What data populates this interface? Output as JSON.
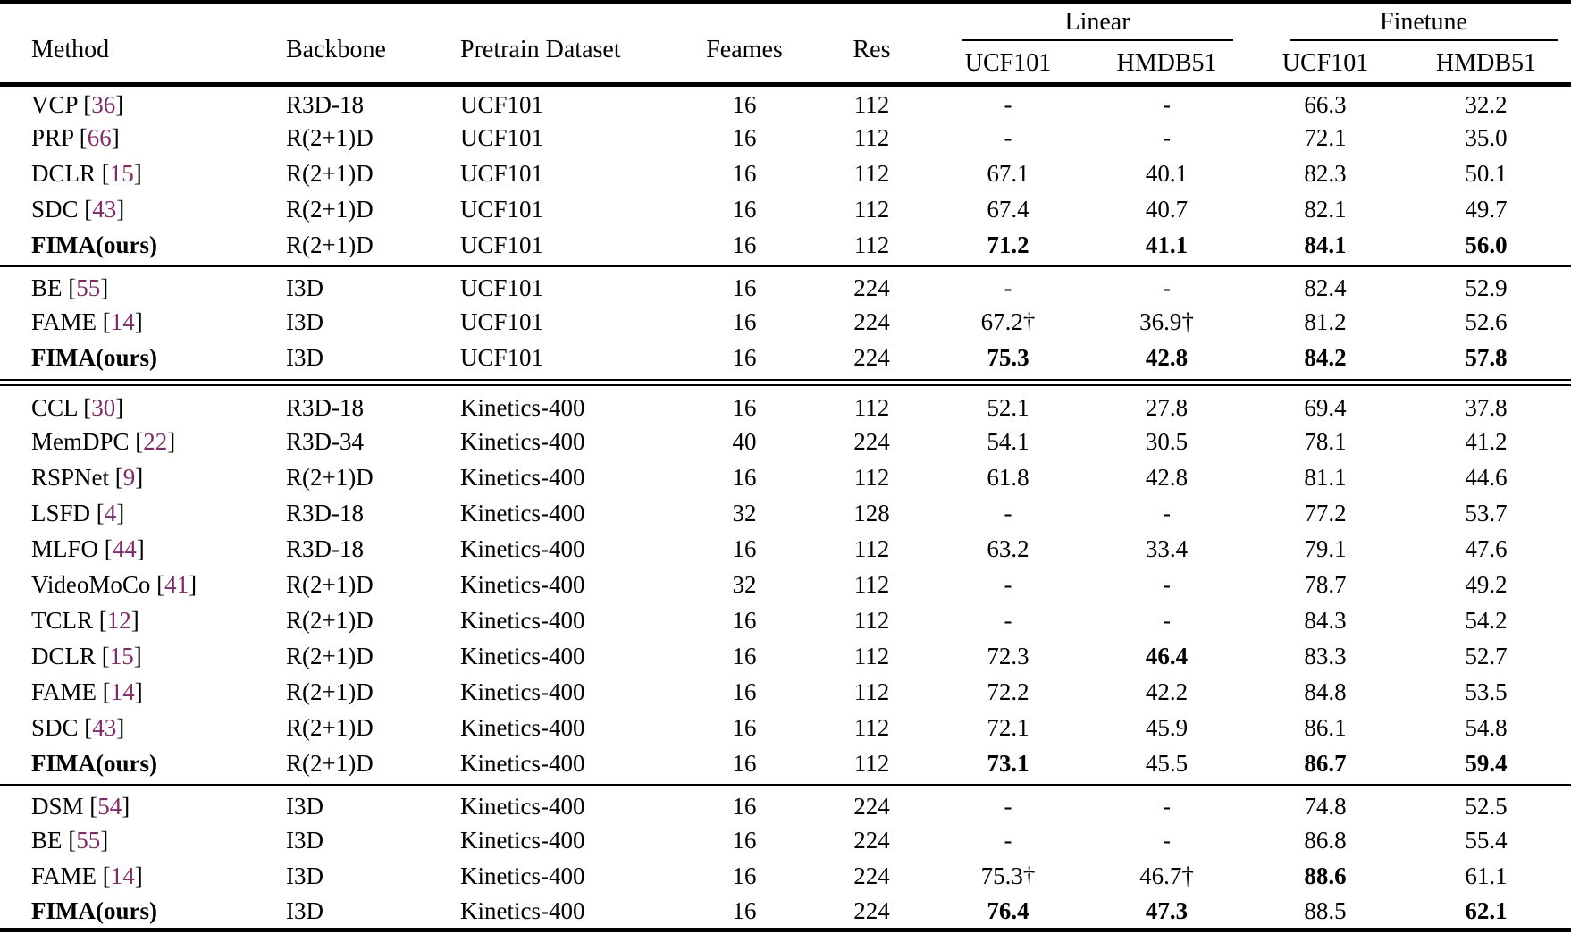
{
  "colors": {
    "citation": "#7b2d66",
    "text": "#000000",
    "rule": "#000000"
  },
  "table": {
    "headers": [
      "Method",
      "Backbone",
      "Pretrain Dataset",
      "Feames",
      "Res"
    ],
    "groups": [
      {
        "label": "Linear",
        "sub": [
          "UCF101",
          "HMDB51"
        ]
      },
      {
        "label": "Finetune",
        "sub": [
          "UCF101",
          "HMDB51"
        ]
      }
    ],
    "value_columns": [
      "linear-ucf101",
      "linear-hmdb51",
      "finetune-ucf101",
      "finetune-hmdb51"
    ],
    "sections": [
      {
        "divider_after": "single",
        "rows": [
          {
            "method": "VCP",
            "ref": "36",
            "bold": false,
            "backbone": "R3D-18",
            "dataset": "UCF101",
            "frames": "16",
            "res": "112",
            "values": [
              "-",
              "-",
              "66.3",
              "32.2"
            ],
            "bold_values": [
              false,
              false,
              false,
              false
            ]
          },
          {
            "method": "PRP",
            "ref": "66",
            "bold": false,
            "backbone": "R(2+1)D",
            "dataset": "UCF101",
            "frames": "16",
            "res": "112",
            "values": [
              "-",
              "-",
              "72.1",
              "35.0"
            ],
            "bold_values": [
              false,
              false,
              false,
              false
            ]
          },
          {
            "method": "DCLR",
            "ref": "15",
            "bold": false,
            "backbone": "R(2+1)D",
            "dataset": "UCF101",
            "frames": "16",
            "res": "112",
            "values": [
              "67.1",
              "40.1",
              "82.3",
              "50.1"
            ],
            "bold_values": [
              false,
              false,
              false,
              false
            ]
          },
          {
            "method": "SDC",
            "ref": "43",
            "bold": false,
            "backbone": "R(2+1)D",
            "dataset": "UCF101",
            "frames": "16",
            "res": "112",
            "values": [
              "67.4",
              "40.7",
              "82.1",
              "49.7"
            ],
            "bold_values": [
              false,
              false,
              false,
              false
            ]
          },
          {
            "method": "FIMA(ours)",
            "ref": null,
            "bold": true,
            "backbone": "R(2+1)D",
            "dataset": "UCF101",
            "frames": "16",
            "res": "112",
            "values": [
              "71.2",
              "41.1",
              "84.1",
              "56.0"
            ],
            "bold_values": [
              true,
              true,
              true,
              true
            ]
          }
        ]
      },
      {
        "divider_after": "double",
        "rows": [
          {
            "method": "BE",
            "ref": "55",
            "bold": false,
            "backbone": "I3D",
            "dataset": "UCF101",
            "frames": "16",
            "res": "224",
            "values": [
              "-",
              "-",
              "82.4",
              "52.9"
            ],
            "bold_values": [
              false,
              false,
              false,
              false
            ]
          },
          {
            "method": "FAME",
            "ref": "14",
            "bold": false,
            "backbone": "I3D",
            "dataset": "UCF101",
            "frames": "16",
            "res": "224",
            "values": [
              "67.2†",
              "36.9†",
              "81.2",
              "52.6"
            ],
            "bold_values": [
              false,
              false,
              false,
              false
            ]
          },
          {
            "method": "FIMA(ours)",
            "ref": null,
            "bold": true,
            "backbone": "I3D",
            "dataset": "UCF101",
            "frames": "16",
            "res": "224",
            "values": [
              "75.3",
              "42.8",
              "84.2",
              "57.8"
            ],
            "bold_values": [
              true,
              true,
              true,
              true
            ]
          }
        ]
      },
      {
        "divider_after": "single",
        "rows": [
          {
            "method": "CCL",
            "ref": "30",
            "bold": false,
            "backbone": "R3D-18",
            "dataset": "Kinetics-400",
            "frames": "16",
            "res": "112",
            "values": [
              "52.1",
              "27.8",
              "69.4",
              "37.8"
            ],
            "bold_values": [
              false,
              false,
              false,
              false
            ]
          },
          {
            "method": "MemDPC",
            "ref": "22",
            "bold": false,
            "backbone": "R3D-34",
            "dataset": "Kinetics-400",
            "frames": "40",
            "res": "224",
            "values": [
              "54.1",
              "30.5",
              "78.1",
              "41.2"
            ],
            "bold_values": [
              false,
              false,
              false,
              false
            ]
          },
          {
            "method": "RSPNet",
            "ref": "9",
            "bold": false,
            "backbone": "R(2+1)D",
            "dataset": "Kinetics-400",
            "frames": "16",
            "res": "112",
            "values": [
              "61.8",
              "42.8",
              "81.1",
              "44.6"
            ],
            "bold_values": [
              false,
              false,
              false,
              false
            ]
          },
          {
            "method": "LSFD",
            "ref": "4",
            "bold": false,
            "backbone": "R3D-18",
            "dataset": "Kinetics-400",
            "frames": "32",
            "res": "128",
            "values": [
              "-",
              "-",
              "77.2",
              "53.7"
            ],
            "bold_values": [
              false,
              false,
              false,
              false
            ]
          },
          {
            "method": "MLFO",
            "ref": "44",
            "bold": false,
            "backbone": "R3D-18",
            "dataset": "Kinetics-400",
            "frames": "16",
            "res": "112",
            "values": [
              "63.2",
              "33.4",
              "79.1",
              "47.6"
            ],
            "bold_values": [
              false,
              false,
              false,
              false
            ]
          },
          {
            "method": "VideoMoCo",
            "ref": "41",
            "bold": false,
            "backbone": "R(2+1)D",
            "dataset": "Kinetics-400",
            "frames": "32",
            "res": "112",
            "values": [
              "-",
              "-",
              "78.7",
              "49.2"
            ],
            "bold_values": [
              false,
              false,
              false,
              false
            ]
          },
          {
            "method": "TCLR",
            "ref": "12",
            "bold": false,
            "backbone": "R(2+1)D",
            "dataset": "Kinetics-400",
            "frames": "16",
            "res": "112",
            "values": [
              "-",
              "-",
              "84.3",
              "54.2"
            ],
            "bold_values": [
              false,
              false,
              false,
              false
            ]
          },
          {
            "method": "DCLR",
            "ref": "15",
            "bold": false,
            "backbone": "R(2+1)D",
            "dataset": "Kinetics-400",
            "frames": "16",
            "res": "112",
            "values": [
              "72.3",
              "46.4",
              "83.3",
              "52.7"
            ],
            "bold_values": [
              false,
              true,
              false,
              false
            ]
          },
          {
            "method": "FAME",
            "ref": "14",
            "bold": false,
            "backbone": "R(2+1)D",
            "dataset": "Kinetics-400",
            "frames": "16",
            "res": "112",
            "values": [
              "72.2",
              "42.2",
              "84.8",
              "53.5"
            ],
            "bold_values": [
              false,
              false,
              false,
              false
            ]
          },
          {
            "method": "SDC",
            "ref": "43",
            "bold": false,
            "backbone": "R(2+1)D",
            "dataset": "Kinetics-400",
            "frames": "16",
            "res": "112",
            "values": [
              "72.1",
              "45.9",
              "86.1",
              "54.8"
            ],
            "bold_values": [
              false,
              false,
              false,
              false
            ]
          },
          {
            "method": "FIMA(ours)",
            "ref": null,
            "bold": true,
            "backbone": "R(2+1)D",
            "dataset": "Kinetics-400",
            "frames": "16",
            "res": "112",
            "values": [
              "73.1",
              "45.5",
              "86.7",
              "59.4"
            ],
            "bold_values": [
              true,
              false,
              true,
              true
            ]
          }
        ]
      },
      {
        "divider_after": "none",
        "rows": [
          {
            "method": "DSM",
            "ref": "54",
            "bold": false,
            "backbone": "I3D",
            "dataset": "Kinetics-400",
            "frames": "16",
            "res": "224",
            "values": [
              "-",
              "-",
              "74.8",
              "52.5"
            ],
            "bold_values": [
              false,
              false,
              false,
              false
            ]
          },
          {
            "method": "BE",
            "ref": "55",
            "bold": false,
            "backbone": "I3D",
            "dataset": "Kinetics-400",
            "frames": "16",
            "res": "224",
            "values": [
              "-",
              "-",
              "86.8",
              "55.4"
            ],
            "bold_values": [
              false,
              false,
              false,
              false
            ]
          },
          {
            "method": "FAME",
            "ref": "14",
            "bold": false,
            "backbone": "I3D",
            "dataset": "Kinetics-400",
            "frames": "16",
            "res": "224",
            "values": [
              "75.3†",
              "46.7†",
              "88.6",
              "61.1"
            ],
            "bold_values": [
              false,
              false,
              true,
              false
            ]
          },
          {
            "method": "FIMA(ours)",
            "ref": null,
            "bold": true,
            "backbone": "I3D",
            "dataset": "Kinetics-400",
            "frames": "16",
            "res": "224",
            "values": [
              "76.4",
              "47.3",
              "88.5",
              "62.1"
            ],
            "bold_values": [
              true,
              true,
              false,
              true
            ]
          }
        ]
      }
    ]
  }
}
